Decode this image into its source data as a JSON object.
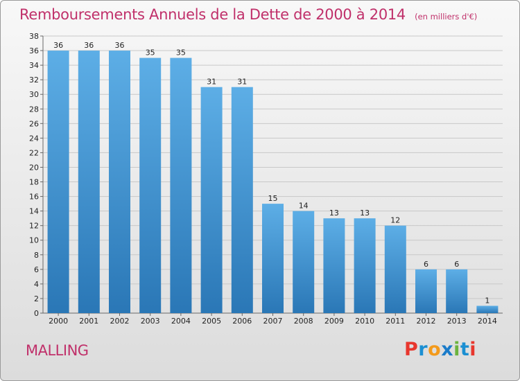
{
  "title": "Remboursements Annuels de la Dette de 2000 à 2014",
  "subtitle": "(en milliers d'€)",
  "commune": "MALLING",
  "logo": {
    "letters": [
      "P",
      "r",
      "o",
      "x",
      "i",
      "t",
      "i"
    ],
    "colors": [
      "#e8362d",
      "#1b8fd2",
      "#f39a1b",
      "#1a7bc9",
      "#6cb33e",
      "#1b8fd2",
      "#e8362d"
    ]
  },
  "colors": {
    "accent": "#c0306a",
    "bar_top": "#5daee6",
    "bar_bottom": "#2a77b6"
  },
  "chart_data": {
    "type": "bar",
    "categories": [
      "2000",
      "2001",
      "2002",
      "2003",
      "2004",
      "2005",
      "2006",
      "2007",
      "2008",
      "2009",
      "2010",
      "2011",
      "2012",
      "2013",
      "2014"
    ],
    "values": [
      36,
      36,
      36,
      35,
      35,
      31,
      31,
      15,
      14,
      13,
      13,
      12,
      6,
      6,
      1
    ],
    "ylim": [
      0,
      38
    ],
    "yticks": [
      0,
      2,
      4,
      6,
      8,
      10,
      12,
      14,
      16,
      18,
      20,
      22,
      24,
      26,
      28,
      30,
      32,
      34,
      36,
      38
    ],
    "grid": true
  }
}
